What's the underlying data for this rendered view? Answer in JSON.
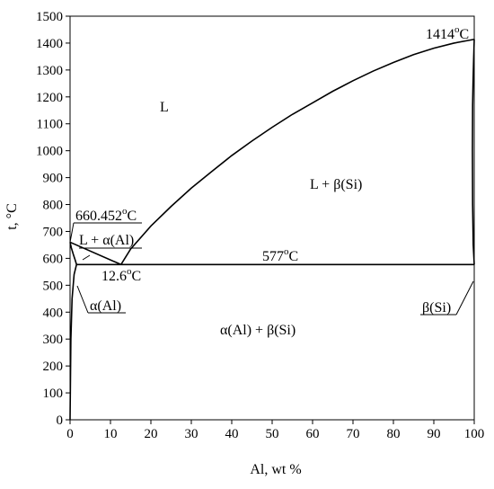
{
  "chart_data": {
    "type": "line",
    "title": "",
    "xlabel": "Al, wt %",
    "ylabel": "t, °C",
    "xlim": [
      0,
      100
    ],
    "ylim": [
      0,
      1500
    ],
    "x_ticks": [
      "0",
      "10",
      "20",
      "30",
      "40",
      "50",
      "60",
      "70",
      "80",
      "90",
      "100"
    ],
    "y_ticks": [
      "0",
      "100",
      "200",
      "300",
      "400",
      "500",
      "600",
      "700",
      "800",
      "900",
      "1000",
      "1100",
      "1200",
      "1300",
      "1400",
      "1500"
    ],
    "grid": false,
    "series": [
      {
        "x": [
          12.6,
          15,
          20,
          25,
          30,
          35,
          40,
          45,
          50,
          55,
          60,
          65,
          70,
          75,
          80,
          85,
          90,
          95,
          100
        ],
        "y": [
          577,
          635,
          720,
          793,
          861,
          922,
          982,
          1036,
          1087,
          1135,
          1178,
          1221,
          1260,
          1296,
          1328,
          1357,
          1381,
          1400,
          1414
        ]
      },
      {
        "x": [
          0,
          12.6
        ],
        "y": [
          660,
          577
        ]
      },
      {
        "x": [
          1.6,
          100
        ],
        "y": [
          577,
          577
        ]
      },
      {
        "x": [
          0,
          0.3,
          0.8,
          1.3,
          1.6
        ],
        "y": [
          660,
          640,
          615,
          592,
          577
        ]
      },
      {
        "x": [
          0,
          0.2,
          0.5,
          1.0,
          1.6
        ],
        "y": [
          0,
          300,
          450,
          540,
          577
        ]
      },
      {
        "x": [
          100,
          99.85,
          99.7,
          99.6,
          99.55,
          99.6,
          99.75,
          100
        ],
        "y": [
          1414,
          1340,
          1250,
          1170,
          1000,
          800,
          650,
          577
        ]
      }
    ],
    "annotations": {
      "region_liquid": "L",
      "region_liquid_si": "L + β(Si)",
      "region_liquid_al": "L + α(Al)",
      "region_two_solid": "α(Al) + β(Si)",
      "phase_al": "α(Al)",
      "phase_si": "β(Si)",
      "eutectic_temp": "577",
      "eutectic_comp": "12.6",
      "al_melting": "660.452",
      "si_melting": "1414",
      "deg_sup": "o",
      "unit_c": "C"
    }
  }
}
